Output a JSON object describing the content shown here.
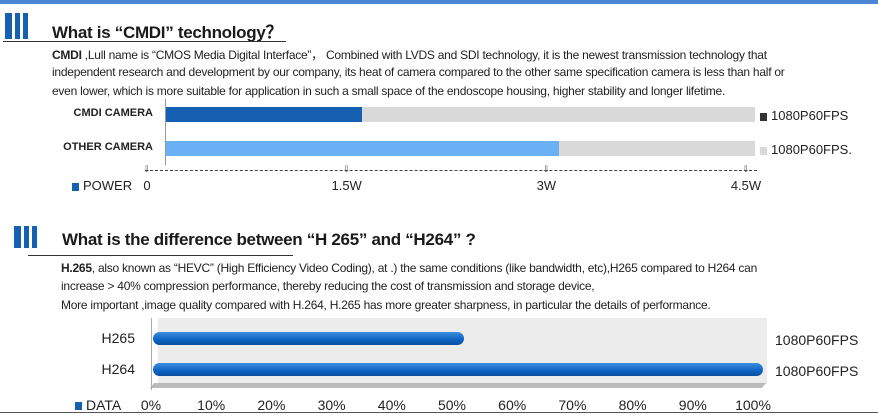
{
  "section1": {
    "title": "What is “CMDI” technology？",
    "para_bold": "CMDI",
    "para_lines": [
      " ,Lull name is “CMOS Media Digital Interface”， Combined with LVDS and SDI technology, it is the newest transmission technology that",
      "independent research and development by our company, its heat of camera compared to the other same specification camera is less than half or",
      "even lower, which is more suitable for application in such a small space of the endoscope housing, higher stability and longer lifetime."
    ],
    "chart_data": {
      "type": "bar",
      "orientation": "horizontal",
      "categories": [
        "CMDI CAMERA",
        "OTHER CAMERA"
      ],
      "series": [
        {
          "name": "POWER",
          "values": [
            1.5,
            3.0
          ]
        }
      ],
      "xlim": [
        0,
        4.5
      ],
      "tick_labels": [
        "0",
        "1.5W",
        "3W",
        "4.5W"
      ],
      "right_labels": [
        "1080P60FPS",
        "1080P60FPS."
      ],
      "legend": "POWER",
      "colors": [
        "#1560b0",
        "#6ab0f5"
      ],
      "track_color": "#d9d9d9"
    }
  },
  "section2": {
    "title": "What is the difference between “H 265” and “H264” ?",
    "para_bold": "H.265",
    "para_lines": [
      ", also known as “HEVC” (High Efficiency Video Coding), at .) the same conditions (like bandwidth, etc),H265 compared to H264 can",
      "increase > 40% compression performance, thereby reducing the cost of transmission and storage device,",
      "More important ,image quality compared with H.264, H.265 has more greater sharpness, in particular the details of performance."
    ],
    "chart_data": {
      "type": "bar",
      "orientation": "horizontal",
      "categories": [
        "H265",
        "H264"
      ],
      "series": [
        {
          "name": "DATA",
          "values": [
            51,
            100
          ]
        }
      ],
      "xlim": [
        0,
        100
      ],
      "tick_labels": [
        "0%",
        "10%",
        "20%",
        "30%",
        "40%",
        "50%",
        "60%",
        "70%",
        "80%",
        "90%",
        "100%"
      ],
      "right_labels": [
        "1080P60FPS",
        "1080P60FPS"
      ],
      "legend": "DATA",
      "color": "#1560b0"
    }
  }
}
